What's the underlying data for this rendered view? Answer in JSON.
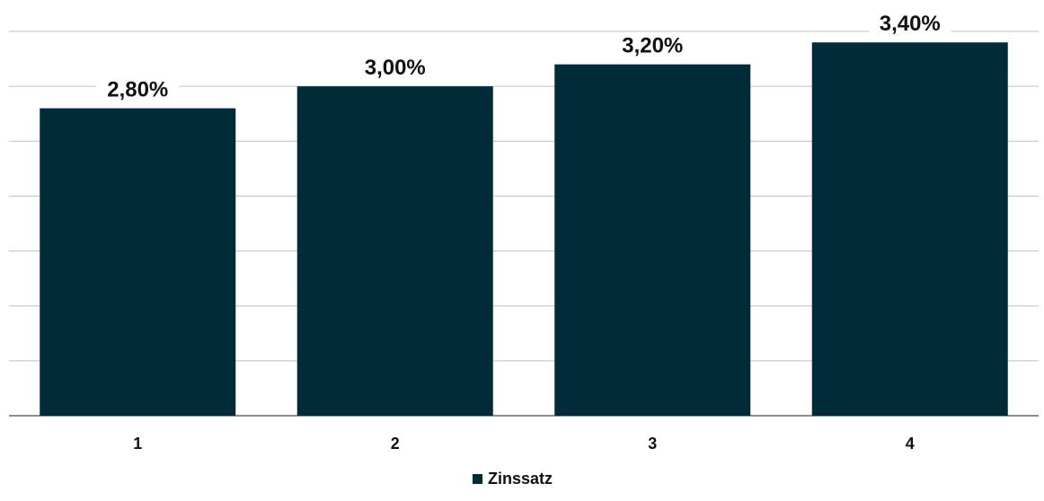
{
  "chart_data": {
    "type": "bar",
    "categories": [
      "1",
      "2",
      "3",
      "4"
    ],
    "series": [
      {
        "name": "Zinssatz",
        "values": [
          2.8,
          3.0,
          3.2,
          3.4
        ],
        "labels": [
          "2,80%",
          "3,00%",
          "3,20%",
          "3,40%"
        ]
      }
    ],
    "ylim": [
      0,
      3.5
    ],
    "grid": true,
    "legend": "bottom",
    "colors": {
      "series": "#022b3a"
    }
  }
}
